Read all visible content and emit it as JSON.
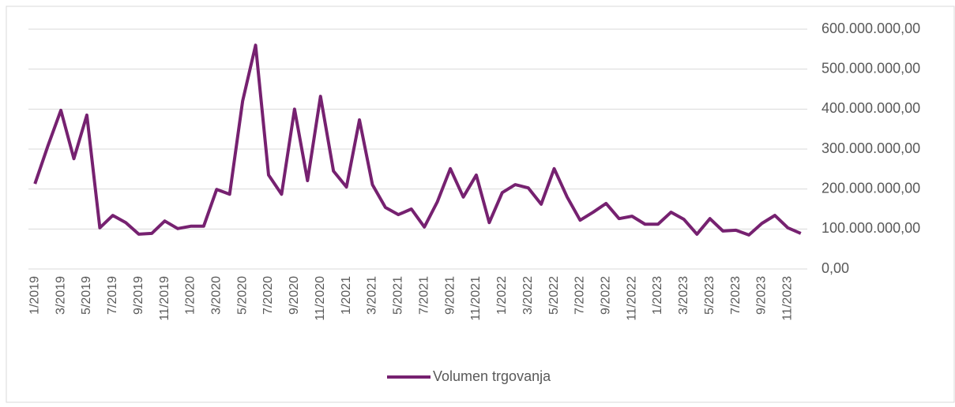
{
  "chart_data": {
    "type": "line",
    "categories": [
      "1/2019",
      null,
      "3/2019",
      null,
      "5/2019",
      null,
      "7/2019",
      null,
      "9/2019",
      null,
      "11/2019",
      null,
      "1/2020",
      null,
      "3/2020",
      null,
      "5/2020",
      null,
      "7/2020",
      null,
      "9/2020",
      null,
      "11/2020",
      null,
      "1/2021",
      null,
      "3/2021",
      null,
      "5/2021",
      null,
      "7/2021",
      null,
      "9/2021",
      null,
      "11/2021",
      null,
      "1/2022",
      null,
      "3/2022",
      null,
      "5/2022",
      null,
      "7/2022",
      null,
      "9/2022",
      null,
      "11/2022",
      null,
      "1/2023",
      null,
      "3/2023",
      null,
      "5/2023",
      null,
      "7/2023",
      null,
      "9/2023",
      null,
      "11/2023",
      null
    ],
    "series": [
      {
        "name": "Volumen trgovanja",
        "color": "#762170",
        "values": [
          213000000,
          308000000,
          397000000,
          276000000,
          385000000,
          103000000,
          134000000,
          116000000,
          87000000,
          89000000,
          120000000,
          101000000,
          107000000,
          107000000,
          199000000,
          187000000,
          420000000,
          560000000,
          235000000,
          187000000,
          400000000,
          221000000,
          432000000,
          245000000,
          205000000,
          373000000,
          211000000,
          154000000,
          136000000,
          150000000,
          105000000,
          168000000,
          251000000,
          180000000,
          235000000,
          116000000,
          191000000,
          211000000,
          203000000,
          162000000,
          251000000,
          180000000,
          122000000,
          142000000,
          164000000,
          126000000,
          132000000,
          112000000,
          112000000,
          142000000,
          124000000,
          87000000,
          126000000,
          95000000,
          97000000,
          85000000,
          114000000,
          134000000,
          103000000,
          89000000
        ]
      }
    ],
    "ylim": [
      0,
      600000000
    ],
    "yticks": [
      {
        "value": 0,
        "label": "0,00"
      },
      {
        "value": 100000000,
        "label": "100.000.000,00"
      },
      {
        "value": 200000000,
        "label": "200.000.000,00"
      },
      {
        "value": 300000000,
        "label": "300.000.000,00"
      },
      {
        "value": 400000000,
        "label": "400.000.000,00"
      },
      {
        "value": 500000000,
        "label": "500.000.000,00"
      },
      {
        "value": 600000000,
        "label": "600.000.000,00"
      }
    ],
    "grid": true,
    "legend": "bottom"
  }
}
